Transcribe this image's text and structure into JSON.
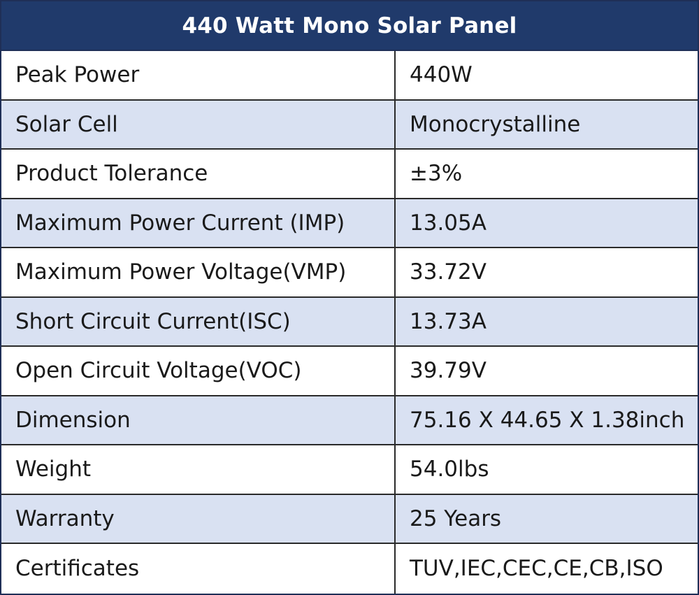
{
  "table": {
    "title": "440 Watt Mono Solar Panel",
    "colors": {
      "header_bg": "#203a6b",
      "header_text": "#ffffff",
      "alt_row_bg": "#d9e1f2",
      "row_bg": "#ffffff",
      "border": "#2a2a2a"
    },
    "rows": [
      {
        "label": "Peak Power",
        "value": "440W"
      },
      {
        "label": "Solar Cell",
        "value": "Monocrystalline"
      },
      {
        "label": "Product Tolerance",
        "value": "±3%"
      },
      {
        "label": "Maximum Power Current (IMP)",
        "value": "13.05A"
      },
      {
        "label": "Maximum Power Voltage(VMP)",
        "value": "33.72V"
      },
      {
        "label": "Short Circuit Current(ISC)",
        "value": "13.73A"
      },
      {
        "label": "Open Circuit Voltage(VOC)",
        "value": "39.79V"
      },
      {
        "label": "Dimension",
        "value": "75.16 X 44.65 X 1.38inch"
      },
      {
        "label": "Weight",
        "value": "54.0lbs"
      },
      {
        "label": "Warranty",
        "value": "25 Years"
      },
      {
        "label": "Certificates",
        "value": "TUV,IEC,CEC,CE,CB,ISO"
      }
    ]
  }
}
